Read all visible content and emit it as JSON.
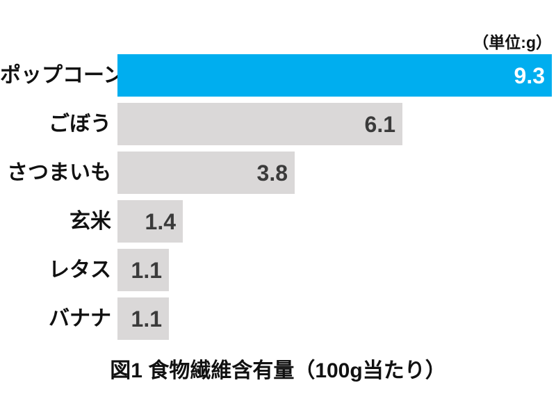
{
  "chart_data": {
    "type": "bar",
    "orientation": "horizontal",
    "title": "図1 食物繊維含有量（100g当たり）",
    "unit_label": "（単位:g）",
    "xlabel": "",
    "ylabel": "",
    "grid": false,
    "legend": "none",
    "xlim": [
      0,
      9.3
    ],
    "categories": [
      "ポップコーン",
      "ごぼう",
      "さつまいも",
      "玄米",
      "レタス",
      "バナナ"
    ],
    "values": [
      9.3,
      6.1,
      3.8,
      1.4,
      1.1,
      1.1
    ],
    "value_labels": [
      "9.3",
      "6.1",
      "3.8",
      "1.4",
      "1.1",
      "1.1"
    ],
    "bar_colors": [
      "#00AEEF",
      "#DAD8D8",
      "#DAD8D8",
      "#DAD8D8",
      "#DAD8D8",
      "#DAD8D8"
    ],
    "value_text_colors": [
      "#FFFFFF",
      "#3B3B3B",
      "#3B3B3B",
      "#3B3B3B",
      "#3B3B3B",
      "#3B3B3B"
    ],
    "highlight_color": "#00AEEF",
    "default_bar_color": "#DAD8D8"
  }
}
